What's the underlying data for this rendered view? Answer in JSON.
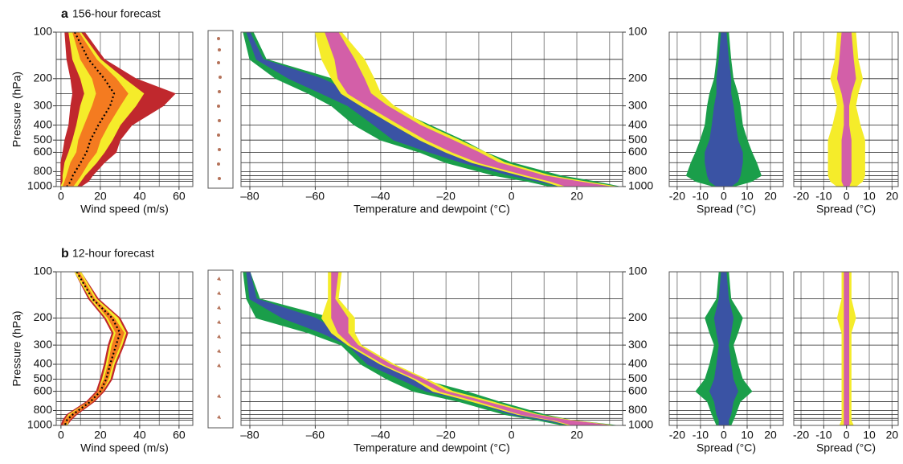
{
  "chart_data": [
    {
      "type": "envelope",
      "panel_label": "a",
      "title": "156-hour forecast",
      "xlabel": "Wind speed (m/s)",
      "ylabel": "Pressure (hPa)",
      "xlim": [
        -2.4,
        67
      ],
      "xticks": [
        0,
        20,
        40,
        60
      ],
      "xgrid": [
        0,
        10,
        20,
        30,
        40,
        50,
        60
      ],
      "ylim": [
        100,
        1000
      ],
      "ylog": true,
      "yinvert": true,
      "yticks": [
        100,
        200,
        300,
        400,
        500,
        600,
        800,
        1000
      ],
      "ytick_side": "left",
      "ygrid": [
        100,
        150,
        200,
        250,
        300,
        400,
        500,
        600,
        700,
        800,
        850,
        900,
        925,
        1000
      ],
      "y": [
        100,
        150,
        200,
        250,
        300,
        400,
        500,
        600,
        700,
        850,
        925,
        1000
      ],
      "series": [
        {
          "color": "#c0282d",
          "x_low": [
            2,
            3,
            5,
            6,
            5,
            4,
            2,
            1,
            0,
            0,
            0,
            0
          ],
          "x_high": [
            12,
            22,
            38,
            58,
            52,
            36,
            30,
            28,
            22,
            16,
            14,
            10
          ]
        },
        {
          "color": "#f5ec2a",
          "x_low": [
            4,
            6,
            10,
            12,
            10,
            8,
            6,
            4,
            2,
            1,
            1,
            0
          ],
          "x_high": [
            10,
            20,
            32,
            42,
            38,
            30,
            26,
            22,
            18,
            12,
            10,
            8
          ]
        },
        {
          "color": "#f47b20",
          "x_low": [
            6,
            10,
            16,
            18,
            16,
            12,
            9,
            8,
            5,
            3,
            2,
            1
          ],
          "x_high": [
            9,
            18,
            28,
            34,
            30,
            24,
            20,
            18,
            14,
            10,
            8,
            6
          ]
        }
      ],
      "mean": {
        "color": "#000000",
        "values": [
          7,
          14,
          22,
          27,
          25,
          19,
          15,
          13,
          10,
          6,
          5,
          3
        ]
      }
    },
    {
      "type": "envelope",
      "xlabel": "Temperature and dewpoint (°C)",
      "xlim": [
        -82.7,
        34
      ],
      "xticks": [
        {
          "value": -80,
          "label": "–80"
        },
        {
          "value": -60,
          "label": "–60"
        },
        {
          "value": -40,
          "label": "–40"
        },
        {
          "value": -20,
          "label": "–20"
        },
        0,
        20
      ],
      "xgrid": [
        -80,
        -70,
        -60,
        -50,
        -40,
        -30,
        -20,
        -10,
        0,
        10,
        20,
        30
      ],
      "ylim": [
        100,
        1000
      ],
      "ylog": true,
      "yinvert": true,
      "yticks": [
        100,
        200,
        300,
        400,
        500,
        600,
        800,
        1000
      ],
      "ytick_side": "right",
      "ygrid": [
        100,
        150,
        200,
        250,
        300,
        400,
        500,
        600,
        700,
        800,
        850,
        900,
        925,
        1000
      ],
      "y": [
        100,
        150,
        200,
        250,
        300,
        400,
        500,
        600,
        700,
        850,
        925,
        1000
      ],
      "series": [
        {
          "color": "#1a9e4a",
          "x_low": [
            -82,
            -80,
            -72,
            -62,
            -55,
            -48,
            -40,
            -28,
            -20,
            -5,
            5,
            12
          ],
          "x_high": [
            -79,
            -75,
            -55,
            -45,
            -38,
            -25,
            -15,
            -8,
            0,
            15,
            25,
            33
          ]
        },
        {
          "color": "#3a53a4",
          "x_low": [
            -81,
            -78,
            -68,
            -58,
            -50,
            -42,
            -36,
            -25,
            -15,
            0,
            8,
            15
          ],
          "x_high": [
            -80,
            -76,
            -58,
            -48,
            -40,
            -28,
            -20,
            -12,
            -4,
            12,
            22,
            32
          ]
        },
        {
          "color": "#f5ec2a",
          "x_low": [
            -60,
            -58,
            -55,
            -52,
            -46,
            -36,
            -28,
            -20,
            -12,
            3,
            10,
            15
          ],
          "x_high": [
            -52,
            -45,
            -42,
            -40,
            -36,
            -26,
            -16,
            -8,
            -2,
            12,
            22,
            32
          ]
        },
        {
          "color": "#d35fa8",
          "x_low": [
            -57,
            -54,
            -53,
            -50,
            -44,
            -34,
            -26,
            -18,
            -10,
            5,
            12,
            17
          ],
          "x_high": [
            -53,
            -48,
            -45,
            -43,
            -38,
            -28,
            -18,
            -10,
            -4,
            10,
            20,
            30
          ]
        }
      ]
    },
    {
      "type": "envelope",
      "xlabel": "Spread (°C)",
      "xlim": [
        -23.4,
        25.5
      ],
      "xticks": [
        -20,
        -10,
        0,
        10,
        20
      ],
      "xgrid": [
        -20,
        -10,
        0,
        10,
        20
      ],
      "ylim": [
        100,
        1000
      ],
      "ylog": true,
      "yinvert": true,
      "ygrid": [
        100,
        150,
        200,
        250,
        300,
        400,
        500,
        600,
        700,
        800,
        850,
        900,
        925,
        1000
      ],
      "y": [
        100,
        150,
        200,
        250,
        300,
        400,
        500,
        600,
        700,
        850,
        925,
        1000
      ],
      "series": [
        {
          "color": "#1a9e4a",
          "x_low": [
            -2,
            -3,
            -4,
            -6,
            -7,
            -8,
            -10,
            -12,
            -14,
            -16,
            -12,
            -4
          ],
          "x_high": [
            2,
            3,
            4,
            6,
            7,
            8,
            10,
            12,
            14,
            16,
            12,
            4
          ]
        },
        {
          "color": "#3a53a4",
          "x_low": [
            -1,
            -2,
            -3,
            -3,
            -4,
            -5,
            -6,
            -8,
            -8,
            -7,
            -6,
            -3
          ],
          "x_high": [
            1,
            2,
            3,
            3,
            4,
            5,
            6,
            8,
            8,
            7,
            6,
            3
          ]
        }
      ]
    },
    {
      "type": "envelope",
      "xlabel": "Spread (°C)",
      "xlim": [
        -23.2,
        22.7
      ],
      "xticks": [
        -20,
        -10,
        0,
        10,
        20
      ],
      "xgrid": [
        -20,
        -10,
        0,
        10,
        20
      ],
      "ylim": [
        100,
        1000
      ],
      "ylog": true,
      "yinvert": true,
      "ygrid": [
        100,
        150,
        200,
        250,
        300,
        400,
        500,
        600,
        700,
        800,
        850,
        900,
        925,
        1000
      ],
      "y": [
        100,
        150,
        200,
        250,
        300,
        400,
        500,
        600,
        700,
        850,
        925,
        1000
      ],
      "series": [
        {
          "color": "#f5ec2a",
          "x_low": [
            -4,
            -5,
            -7,
            -5,
            -4,
            -6,
            -8,
            -8,
            -8,
            -8,
            -7,
            -4
          ],
          "x_high": [
            4,
            5,
            7,
            5,
            4,
            6,
            8,
            8,
            8,
            8,
            7,
            4
          ]
        },
        {
          "color": "#d35fa8",
          "x_low": [
            -2,
            -3,
            -4,
            -2,
            -1,
            -1,
            -2,
            -2,
            -2,
            -2,
            -2,
            -1
          ],
          "x_high": [
            2,
            3,
            4,
            2,
            1,
            1,
            2,
            2,
            2,
            2,
            2,
            1
          ]
        }
      ]
    },
    {
      "type": "envelope",
      "panel_label": "b",
      "title": "12-hour forecast",
      "xlabel": "Wind speed (m/s)",
      "ylabel": "Pressure (hPa)",
      "xlim": [
        -2.4,
        67
      ],
      "xticks": [
        0,
        20,
        40,
        60
      ],
      "xgrid": [
        0,
        10,
        20,
        30,
        40,
        50,
        60
      ],
      "ylim": [
        100,
        1000
      ],
      "ylog": true,
      "yinvert": true,
      "yticks": [
        100,
        200,
        300,
        400,
        500,
        600,
        800,
        1000
      ],
      "ytick_side": "left",
      "ygrid": [
        100,
        150,
        200,
        250,
        300,
        400,
        500,
        600,
        700,
        800,
        850,
        900,
        925,
        1000
      ],
      "y": [
        100,
        150,
        200,
        250,
        300,
        400,
        500,
        600,
        700,
        850,
        925,
        1000
      ],
      "series": [
        {
          "color": "#c0282d",
          "x_low": [
            7,
            14,
            22,
            26,
            24,
            22,
            20,
            18,
            13,
            3,
            1,
            0
          ],
          "x_high": [
            10,
            19,
            30,
            34,
            32,
            28,
            26,
            22,
            17,
            8,
            5,
            3
          ]
        },
        {
          "color": "#f5ec2a",
          "x_low": [
            7,
            15,
            23,
            27,
            25,
            23,
            21,
            19,
            14,
            4,
            2,
            1
          ],
          "x_high": [
            10,
            18,
            29,
            33,
            31,
            27,
            25,
            21,
            16,
            7,
            4,
            3
          ]
        },
        {
          "color": "#f47b20",
          "x_low": [
            8,
            16,
            24,
            28,
            26,
            24,
            22,
            19,
            14,
            5,
            2,
            1
          ],
          "x_high": [
            9,
            17,
            27,
            32,
            30,
            26,
            24,
            21,
            16,
            7,
            4,
            2
          ]
        }
      ],
      "mean": {
        "color": "#000000",
        "values": [
          8,
          16,
          26,
          30,
          28,
          25,
          23,
          20,
          15,
          6,
          3,
          2
        ]
      }
    },
    {
      "type": "envelope",
      "xlabel": "Temperature and dewpoint (°C)",
      "xlim": [
        -82.7,
        34
      ],
      "xticks": [
        {
          "value": -80,
          "label": "–80"
        },
        {
          "value": -60,
          "label": "–60"
        },
        {
          "value": -40,
          "label": "–40"
        },
        {
          "value": -20,
          "label": "–20"
        },
        0,
        20
      ],
      "xgrid": [
        -80,
        -70,
        -60,
        -50,
        -40,
        -30,
        -20,
        -10,
        0,
        10,
        20,
        30
      ],
      "ylim": [
        100,
        1000
      ],
      "ylog": true,
      "yinvert": true,
      "yticks": [
        100,
        200,
        300,
        400,
        500,
        600,
        800,
        1000
      ],
      "ytick_side": "right",
      "ygrid": [
        100,
        150,
        200,
        250,
        300,
        400,
        500,
        600,
        700,
        800,
        850,
        900,
        925,
        1000
      ],
      "y": [
        100,
        150,
        200,
        250,
        300,
        400,
        500,
        600,
        700,
        850,
        925,
        1000
      ],
      "series": [
        {
          "color": "#1a9e4a",
          "x_low": [
            -82,
            -81,
            -78,
            -62,
            -52,
            -46,
            -38,
            -30,
            -16,
            -2,
            8,
            16
          ],
          "x_high": [
            -80,
            -77,
            -55,
            -50,
            -46,
            -38,
            -28,
            -14,
            -4,
            10,
            18,
            32
          ]
        },
        {
          "color": "#3a53a4",
          "x_low": [
            -81,
            -80,
            -70,
            -58,
            -50,
            -44,
            -34,
            -26,
            -12,
            0,
            10,
            18
          ],
          "x_high": [
            -80,
            -78,
            -60,
            -52,
            -47,
            -40,
            -30,
            -18,
            -6,
            8,
            16,
            30
          ]
        },
        {
          "color": "#f5ec2a",
          "x_low": [
            -56,
            -56,
            -58,
            -55,
            -50,
            -40,
            -30,
            -24,
            -12,
            2,
            12,
            18
          ],
          "x_high": [
            -52,
            -53,
            -48,
            -48,
            -46,
            -36,
            -26,
            -18,
            -6,
            8,
            18,
            31
          ]
        },
        {
          "color": "#d35fa8",
          "x_low": [
            -55,
            -55,
            -55,
            -53,
            -49,
            -39,
            -29,
            -22,
            -10,
            3,
            13,
            19
          ],
          "x_high": [
            -53,
            -54,
            -50,
            -50,
            -47,
            -37,
            -27,
            -20,
            -8,
            7,
            17,
            30
          ]
        }
      ]
    },
    {
      "type": "envelope",
      "xlabel": "Spread (°C)",
      "xlim": [
        -23.4,
        25.5
      ],
      "xticks": [
        -20,
        -10,
        0,
        10,
        20
      ],
      "xgrid": [
        -20,
        -10,
        0,
        10,
        20
      ],
      "ylim": [
        100,
        1000
      ],
      "ylog": true,
      "yinvert": true,
      "ygrid": [
        100,
        150,
        200,
        250,
        300,
        400,
        500,
        600,
        700,
        800,
        850,
        900,
        925,
        1000
      ],
      "y": [
        100,
        150,
        200,
        250,
        300,
        400,
        500,
        600,
        700,
        850,
        925,
        1000
      ],
      "series": [
        {
          "color": "#1a9e4a",
          "x_low": [
            -2,
            -3,
            -8,
            -6,
            -4,
            -6,
            -8,
            -12,
            -7,
            -5,
            -4,
            -3
          ],
          "x_high": [
            2,
            3,
            8,
            6,
            4,
            6,
            8,
            12,
            7,
            5,
            4,
            3
          ]
        },
        {
          "color": "#3a53a4",
          "x_low": [
            -1,
            -2,
            -4,
            -3,
            -2,
            -3,
            -4,
            -6,
            -4,
            -3,
            -2,
            -2
          ],
          "x_high": [
            1,
            2,
            4,
            3,
            2,
            3,
            4,
            6,
            4,
            3,
            2,
            2
          ]
        }
      ]
    },
    {
      "type": "envelope",
      "xlabel": "Spread (°C)",
      "xlim": [
        -23.2,
        22.7
      ],
      "xticks": [
        -20,
        -10,
        0,
        10,
        20
      ],
      "xgrid": [
        -20,
        -10,
        0,
        10,
        20
      ],
      "ylim": [
        100,
        1000
      ],
      "ylog": true,
      "yinvert": true,
      "ygrid": [
        100,
        150,
        200,
        250,
        300,
        400,
        500,
        600,
        700,
        800,
        850,
        900,
        925,
        1000
      ],
      "y": [
        100,
        150,
        200,
        250,
        300,
        400,
        500,
        600,
        700,
        850,
        925,
        1000
      ],
      "series": [
        {
          "color": "#f5ec2a",
          "x_low": [
            -2,
            -2,
            -4,
            -2,
            -2,
            -2,
            -2,
            -2,
            -2,
            -2,
            -2,
            -3
          ],
          "x_high": [
            2,
            2,
            4,
            2,
            2,
            2,
            2,
            2,
            2,
            2,
            2,
            3
          ]
        },
        {
          "color": "#d35fa8",
          "x_low": [
            -1,
            -1,
            -1,
            -1,
            -1,
            -1,
            -1,
            -1,
            -1,
            -1,
            -1,
            -1
          ],
          "x_high": [
            1,
            1,
            1,
            1,
            1,
            1,
            1,
            1,
            1,
            1,
            1,
            1
          ]
        }
      ]
    }
  ]
}
